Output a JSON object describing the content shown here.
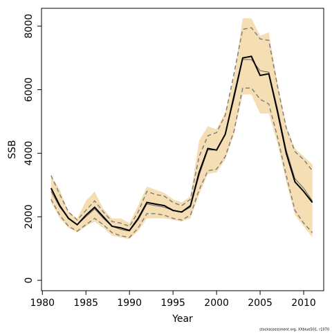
{
  "chart_data": {
    "type": "line",
    "xlabel": "Year",
    "ylabel": "SSB",
    "annotation": "stockassessment.org, XXblue501, r1070",
    "x": [
      1981,
      1982,
      1983,
      1984,
      1985,
      1986,
      1987,
      1988,
      1989,
      1990,
      1991,
      1992,
      1993,
      1994,
      1995,
      1996,
      1997,
      1998,
      1999,
      2000,
      2001,
      2002,
      2003,
      2004,
      2005,
      2006,
      2007,
      2008,
      2009,
      2010,
      2011
    ],
    "band_color": "#f5deb3",
    "band_upper": [
      3300,
      2850,
      2150,
      1950,
      2500,
      2800,
      2250,
      1950,
      1950,
      1800,
      2350,
      2950,
      2850,
      2750,
      2550,
      2450,
      2650,
      4400,
      4850,
      4750,
      5300,
      6400,
      8250,
      8250,
      7700,
      7800,
      6200,
      4850,
      4150,
      3900,
      3650
    ],
    "band_lower": [
      2450,
      1950,
      1650,
      1500,
      1700,
      1850,
      1650,
      1400,
      1350,
      1300,
      1550,
      1950,
      1950,
      1950,
      1900,
      1850,
      1950,
      2700,
      3350,
      3400,
      3800,
      4600,
      5850,
      5850,
      5250,
      5250,
      4300,
      3100,
      2050,
      1700,
      1350
    ],
    "series": [
      {
        "color": "#808080",
        "dash": true,
        "values": [
          3300,
          2700,
          2150,
          1900,
          2200,
          2500,
          2150,
          1850,
          1800,
          1700,
          2150,
          2800,
          2700,
          2650,
          2450,
          2350,
          2550,
          3900,
          4550,
          4650,
          5200,
          6500,
          7900,
          7950,
          7600,
          7550,
          6100,
          4800,
          4050,
          3800,
          3450
        ]
      },
      {
        "color": "#808080",
        "dash": true,
        "values": [
          2550,
          2050,
          1700,
          1550,
          1750,
          1950,
          1750,
          1500,
          1400,
          1350,
          1650,
          2100,
          2100,
          2050,
          1950,
          1900,
          2050,
          2850,
          3450,
          3500,
          3900,
          4700,
          6050,
          6050,
          5700,
          5550,
          4500,
          3300,
          2200,
          1800,
          1500
        ]
      },
      {
        "color": "#606060",
        "dash": false,
        "width": 1,
        "values": [
          2800,
          2300,
          1950,
          1750,
          2000,
          2250,
          1950,
          1700,
          1600,
          1550,
          1900,
          2400,
          2350,
          2300,
          2200,
          2150,
          2300,
          3300,
          4100,
          4100,
          4600,
          5700,
          6950,
          6950,
          6600,
          6550,
          5400,
          4100,
          3200,
          2900,
          2500
        ]
      },
      {
        "color": "#000000",
        "dash": false,
        "width": 2,
        "values": [
          2900,
          2350,
          1950,
          1750,
          2050,
          2300,
          2000,
          1700,
          1650,
          1570,
          1950,
          2450,
          2400,
          2350,
          2200,
          2150,
          2350,
          3400,
          4150,
          4100,
          4600,
          5800,
          7000,
          7050,
          6450,
          6500,
          5300,
          4000,
          3100,
          2800,
          2450
        ]
      }
    ],
    "xlim": [
      1979.9,
      2012.3
    ],
    "ylim": [
      -327,
      8562
    ],
    "xticks": [
      1980,
      1985,
      1990,
      1995,
      2000,
      2005,
      2010
    ],
    "yticks": [
      0,
      2000,
      4000,
      6000,
      8000
    ]
  }
}
